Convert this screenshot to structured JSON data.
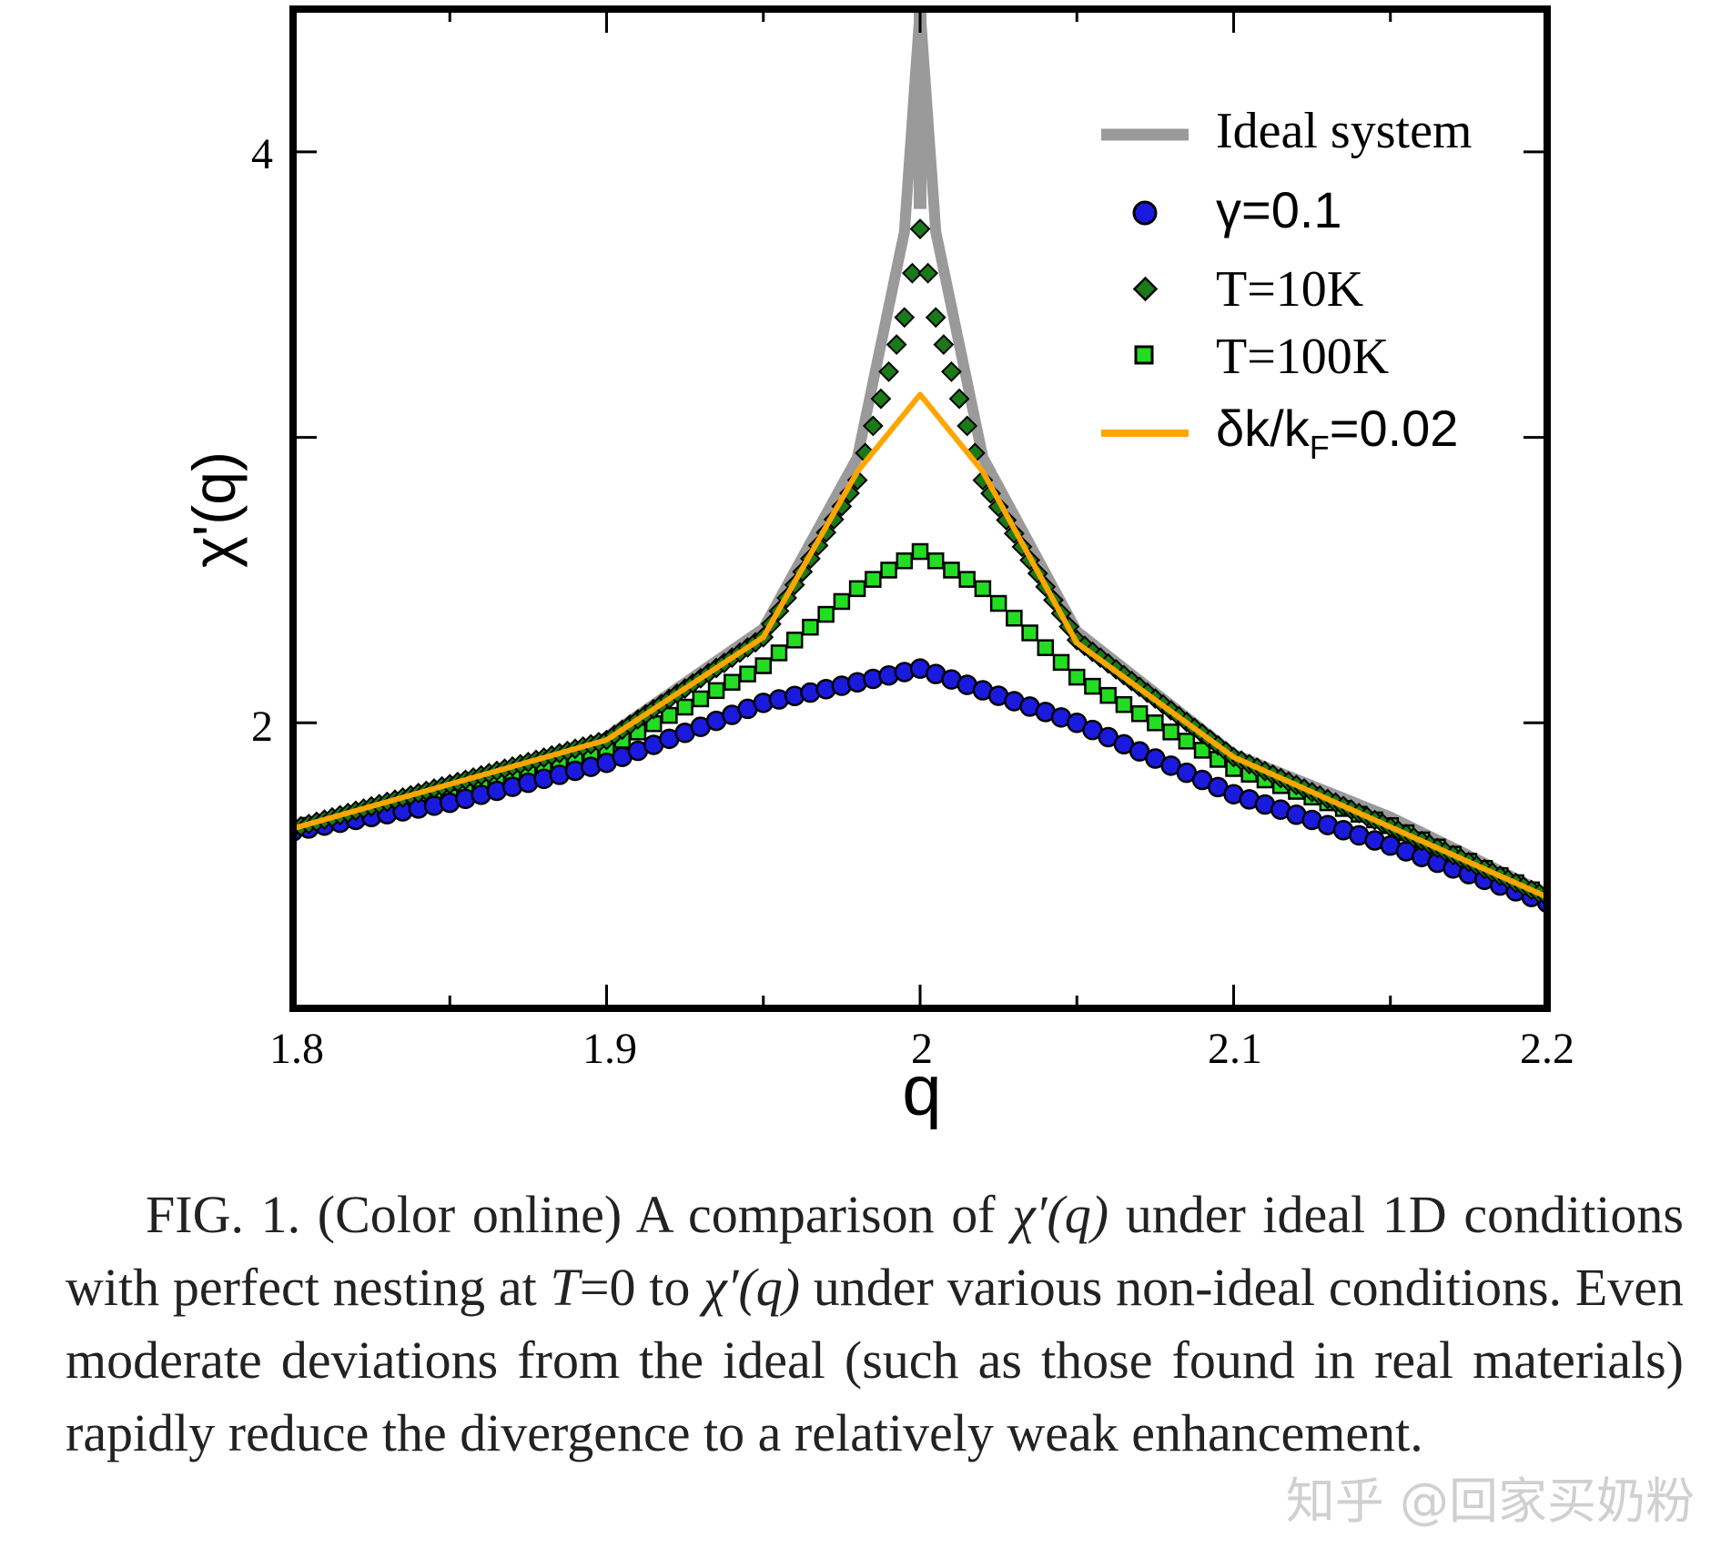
{
  "chart_data": {
    "type": "line",
    "xlabel": "q",
    "ylabel": "χ'(q)",
    "xlim": [
      1.8,
      2.2
    ],
    "ylim": [
      1.0,
      4.5
    ],
    "xticks": [
      "1.8",
      "1.9",
      "2",
      "2.1",
      "2.2"
    ],
    "yticks": [
      "2",
      "4"
    ],
    "legend_position": "top-right",
    "series": [
      {
        "name": "Ideal system",
        "style": "line",
        "color": "#9a9a9a",
        "description": "log divergence at q=2",
        "x": [
          1.8,
          1.85,
          1.9,
          1.95,
          1.98,
          1.995,
          2.0,
          2.005,
          2.02,
          2.05,
          2.1,
          2.15,
          2.2
        ],
        "y": [
          1.64,
          1.76,
          1.95,
          2.33,
          2.93,
          3.72,
          4.5,
          3.72,
          2.93,
          2.32,
          1.89,
          1.67,
          1.4
        ]
      },
      {
        "name": "γ=0.1",
        "style": "circle",
        "color": "#1a1adf",
        "x": [
          1.8,
          1.85,
          1.9,
          1.95,
          2.0,
          2.05,
          2.1,
          2.15,
          2.2
        ],
        "y": [
          1.62,
          1.72,
          1.86,
          2.07,
          2.19,
          2.0,
          1.75,
          1.57,
          1.37
        ]
      },
      {
        "name": "T=10K",
        "style": "diamond",
        "color": "#1a7a1a",
        "x": [
          1.8,
          1.9,
          1.95,
          1.98,
          1.995,
          2.0,
          2.005,
          2.02,
          2.05,
          2.1,
          2.2
        ],
        "y": [
          1.63,
          1.94,
          2.3,
          2.85,
          3.42,
          3.73,
          3.42,
          2.85,
          2.29,
          1.88,
          1.39
        ]
      },
      {
        "name": "T=100K",
        "style": "square",
        "color": "#22dd22",
        "x": [
          1.8,
          1.85,
          1.9,
          1.95,
          1.98,
          2.0,
          2.02,
          2.05,
          2.1,
          2.15,
          2.2
        ],
        "y": [
          1.63,
          1.74,
          1.91,
          2.2,
          2.47,
          2.6,
          2.47,
          2.16,
          1.84,
          1.64,
          1.39
        ]
      },
      {
        "name": "δk/k_F=0.02",
        "style": "line",
        "color": "#ffa500",
        "x": [
          1.8,
          1.9,
          1.95,
          1.98,
          2.0,
          2.02,
          2.05,
          2.1,
          2.2
        ],
        "y": [
          1.63,
          1.94,
          2.3,
          2.88,
          3.15,
          2.88,
          2.28,
          1.88,
          1.39
        ]
      }
    ],
    "legend_labels": {
      "ideal": "Ideal system",
      "gamma": "γ=0.1",
      "t10": "T=10K",
      "t100": "T=100K",
      "dk_main": "δk/k",
      "dk_sub": "F",
      "dk_tail": "=0.02"
    }
  },
  "caption": {
    "label": "FIG. 1.",
    "p1": "(Color online) A comparison of ",
    "chi": "χ′(q)",
    "p2": " under ideal 1D conditions with perfect nesting at ",
    "tvar": "T",
    "p3": "=0 to ",
    "p4": " under various non-ideal conditions. Even moderate deviations from the ideal (such as those found in real materials) rapidly reduce the divergence to a relatively weak enhancement."
  },
  "watermark": "知乎 @回家买奶粉"
}
